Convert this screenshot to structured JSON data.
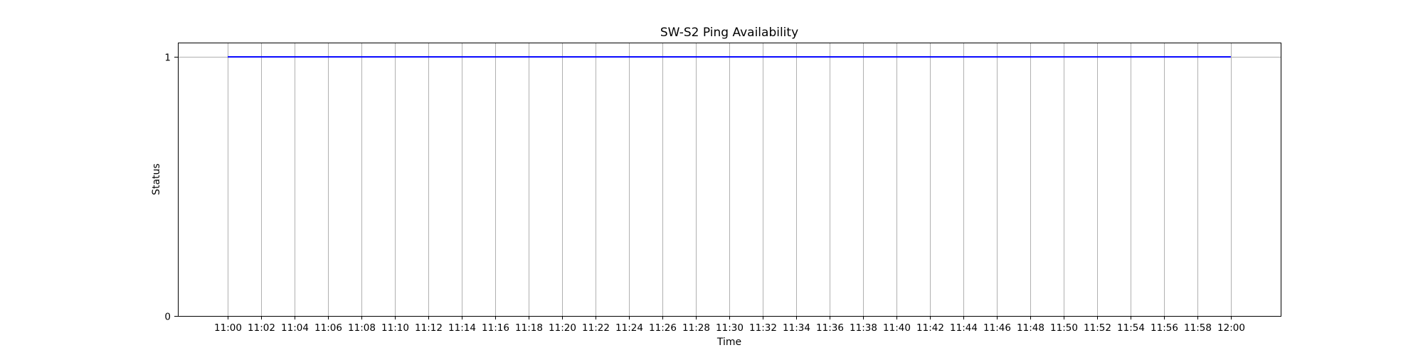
{
  "chart_data": {
    "type": "line",
    "title": "SW-S2 Ping Availability",
    "xlabel": "Time",
    "ylabel": "Status",
    "x_ticks": [
      "11:00",
      "11:02",
      "11:04",
      "11:06",
      "11:08",
      "11:10",
      "11:12",
      "11:14",
      "11:16",
      "11:18",
      "11:20",
      "11:22",
      "11:24",
      "11:26",
      "11:28",
      "11:30",
      "11:32",
      "11:34",
      "11:36",
      "11:38",
      "11:40",
      "11:42",
      "11:44",
      "11:46",
      "11:48",
      "11:50",
      "11:52",
      "11:54",
      "11:56",
      "11:58",
      "12:00"
    ],
    "y_ticks": [
      "0",
      "1"
    ],
    "ylim": [
      0,
      1.055
    ],
    "xlim": [
      "10:57:01",
      "12:02:59"
    ],
    "grid": true,
    "series": [
      {
        "color": "#0000ff",
        "x": [
          "11:00",
          "12:00"
        ],
        "y": [
          1,
          1
        ]
      }
    ]
  }
}
